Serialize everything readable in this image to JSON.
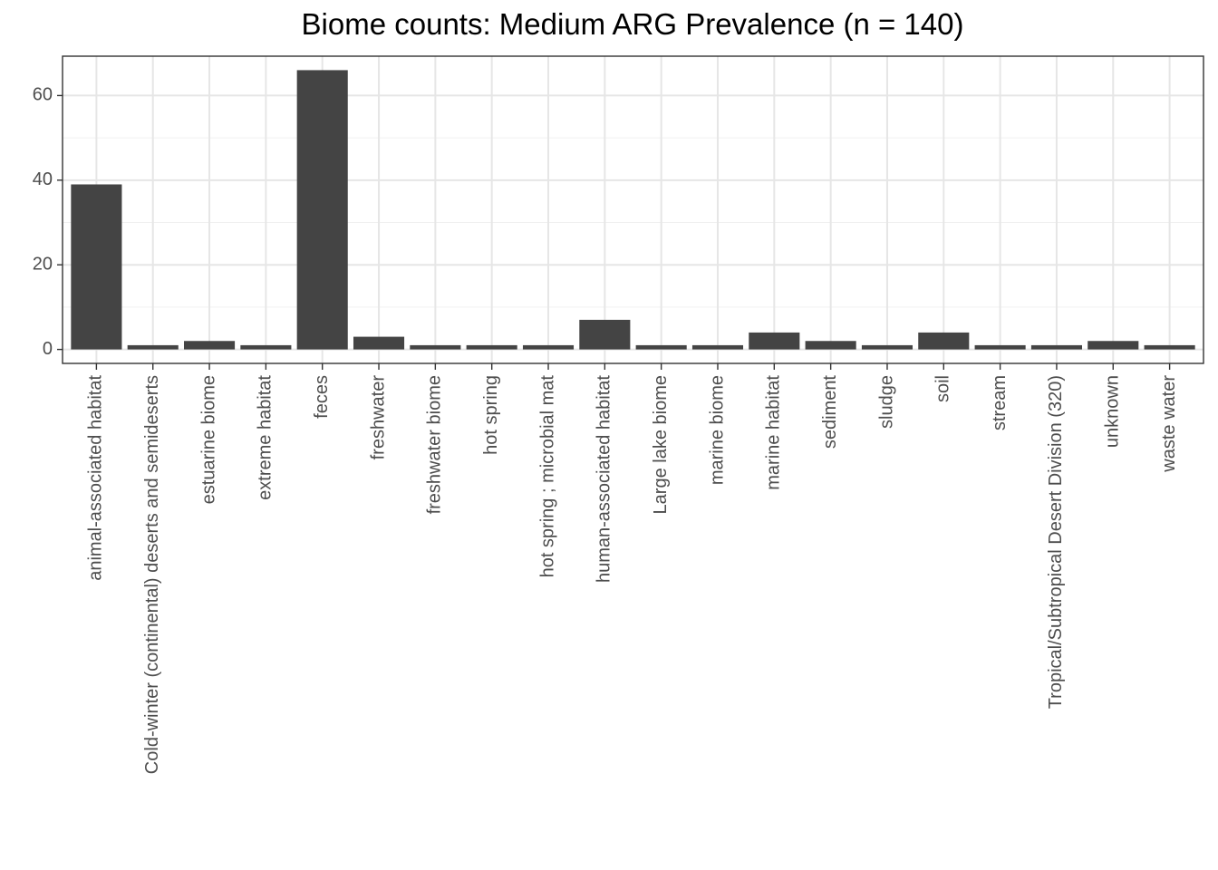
{
  "chart_data": {
    "type": "bar",
    "title": "Biome counts: Medium ARG Prevalence (n = 140)",
    "xlabel": "",
    "ylabel": "",
    "categories": [
      "animal-associated habitat",
      "Cold-winter (continental) deserts and semideserts",
      "estuarine biome",
      "extreme habitat",
      "feces",
      "freshwater",
      "freshwater biome",
      "hot spring",
      "hot spring ; microbial mat",
      "human-associated habitat",
      "Large lake biome",
      "marine biome",
      "marine habitat",
      "sediment",
      "sludge",
      "soil",
      "stream",
      "Tropical/Subtropical Desert Division (320)",
      "unknown",
      "waste water"
    ],
    "values": [
      39,
      1,
      2,
      1,
      66,
      3,
      1,
      1,
      1,
      7,
      1,
      1,
      4,
      2,
      1,
      4,
      1,
      1,
      2,
      1
    ],
    "ylim": [
      -3.3,
      69.3
    ],
    "yticks": [
      0,
      20,
      40,
      60
    ],
    "bar_color": "#444444",
    "grid": true,
    "legend": "none"
  }
}
